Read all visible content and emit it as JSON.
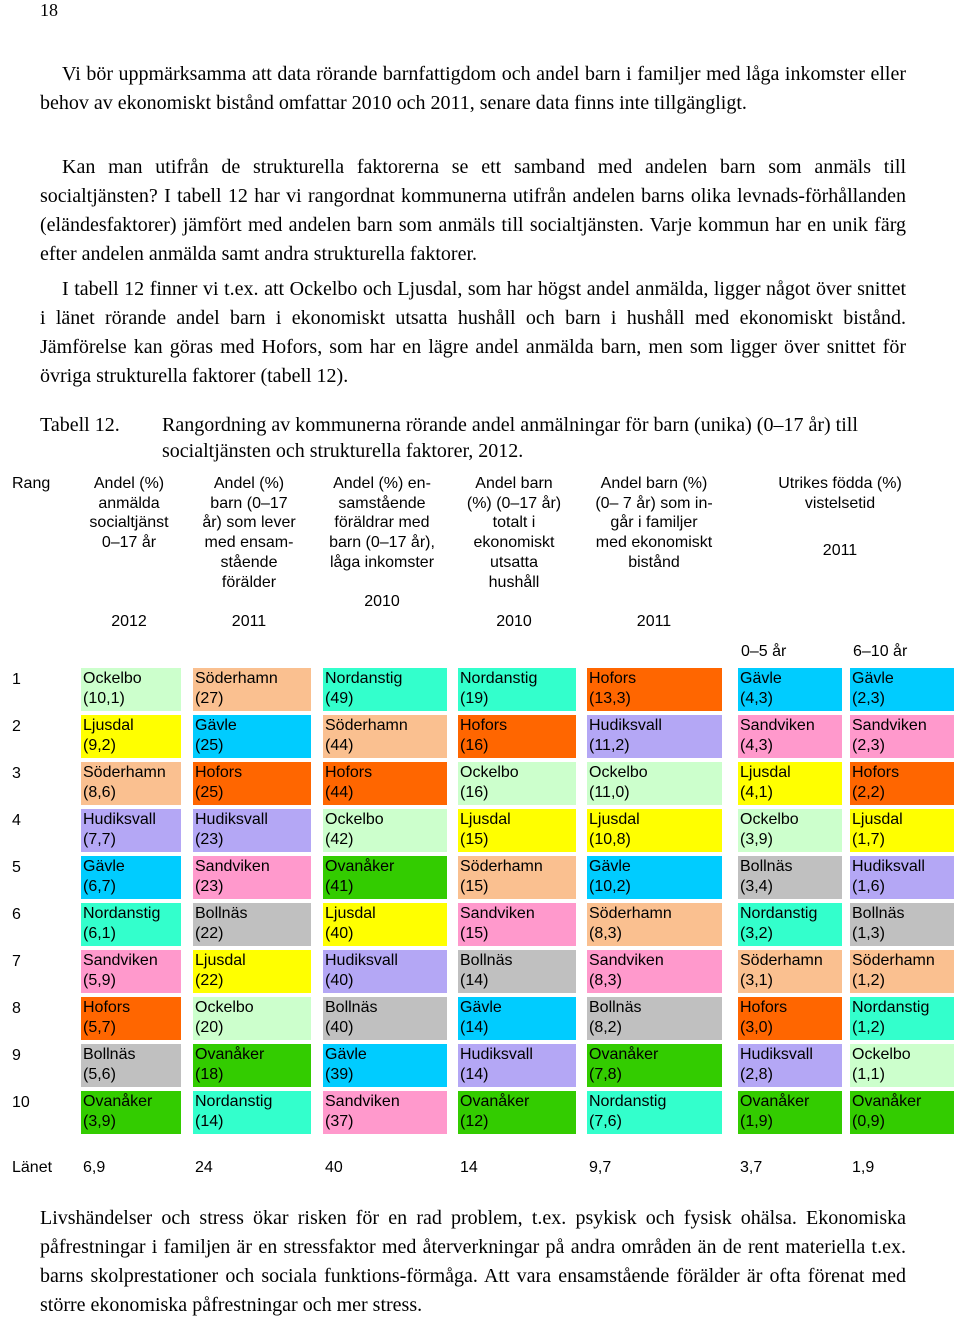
{
  "page_number": "18",
  "paragraphs": [
    {
      "indent": true,
      "text": "Vi bör uppmärksamma att data rörande barnfattigdom och andel barn i familjer med låga inkomster eller behov av ekonomiskt bistånd omfattar 2010 och 2011, senare data finns inte tillgängligt."
    },
    {
      "indent": true,
      "text": "Kan man utifrån de strukturella faktorerna se ett samband med andelen barn som anmäls till socialtjänsten? I tabell 12 har vi rangordnat kommunerna utifrån andelen barns olika levnads-förhållanden (eländesfaktorer) jämfört med andelen barn som anmäls till socialtjänsten. Varje kommun har en unik färg efter andelen anmälda samt andra strukturella faktorer."
    },
    {
      "indent": true,
      "text": "I tabell 12 finner vi t.ex. att Ockelbo och Ljusdal, som har högst andel anmälda, ligger något över snittet i länet rörande andel barn i ekonomiskt utsatta hushåll och barn i hushåll med ekonomiskt bistånd. Jämförelse kan göras med Hofors, som har en lägre andel anmälda barn, men som ligger över snittet för övriga strukturella faktorer (tabell 12)."
    }
  ],
  "caption": {
    "label": "Tabell 12.",
    "text": "Rangordning av kommunerna rörande andel anmälningar för barn (unika) (0–17 år) till socialtjänsten och strukturella faktorer, 2012."
  },
  "table": {
    "rank_header": "Rang",
    "col_headers": [
      {
        "label": "Andel (%)\nanmälda\nsocialtjänst\n0–17 år",
        "year": "2012"
      },
      {
        "label": "Andel (%)\nbarn (0–17\når) som lever\nmed ensam-\nstående\nförälder",
        "year": "2011"
      },
      {
        "label": "Andel (%) en-\nsamstående\nföräldrar med\nbarn (0–17 år),\nlåga inkomster\n\n2010",
        "year": ""
      },
      {
        "label": "Andel barn\n(%) (0–17 år)\ntotalt i\nekonomiskt\nutsatta\nhushåll",
        "year": "2010"
      },
      {
        "label": "Andel barn (%)\n(0– 7 år) som in-\ngår i familjer\nmed ekonomiskt\nbistånd",
        "year": "2011"
      }
    ],
    "utrikes_header": "Utrikes födda (%)\nvistelsetid",
    "utrikes_year": "2011",
    "utrikes_sub": [
      "0–5 år",
      "6–10 år"
    ],
    "ranks": [
      "1",
      "2",
      "3",
      "4",
      "5",
      "6",
      "7",
      "8",
      "9",
      "10"
    ],
    "colors": {
      "Ockelbo": "#ccffcc",
      "Ljusdal": "#ffff00",
      "Söderhamn": "#fac090",
      "Hudiksvall": "#b4a7f5",
      "Gävle": "#00ccff",
      "Nordanstig": "#33ffcc",
      "Sandviken": "#ff99cc",
      "Hofors": "#ff6600",
      "Bollnäs": "#c0c0c0",
      "Ovanåker": "#33cc00"
    },
    "columns": [
      [
        [
          "Ockelbo",
          "(10,1)"
        ],
        [
          "Ljusdal",
          "(9,2)"
        ],
        [
          "Söderhamn",
          "(8,6)"
        ],
        [
          "Hudiksvall",
          "(7,7)"
        ],
        [
          "Gävle",
          "(6,7)"
        ],
        [
          "Nordanstig",
          "(6,1)"
        ],
        [
          "Sandviken",
          "(5,9)"
        ],
        [
          "Hofors",
          "(5,7)"
        ],
        [
          "Bollnäs",
          "(5,6)"
        ],
        [
          "Ovanåker",
          "(3,9)"
        ]
      ],
      [
        [
          "Söderhamn",
          "(27)"
        ],
        [
          "Gävle",
          "(25)"
        ],
        [
          "Hofors",
          "(25)"
        ],
        [
          "Hudiksvall",
          "(23)"
        ],
        [
          "Sandviken",
          "(23)"
        ],
        [
          "Bollnäs",
          "(22)"
        ],
        [
          "Ljusdal",
          "(22)"
        ],
        [
          "Ockelbo",
          "(20)"
        ],
        [
          "Ovanåker",
          "(18)"
        ],
        [
          "Nordanstig",
          "(14)"
        ]
      ],
      [
        [
          "Nordanstig",
          "(49)"
        ],
        [
          "Söderhamn",
          "(44)"
        ],
        [
          "Hofors",
          "(44)"
        ],
        [
          "Ockelbo",
          "(42)"
        ],
        [
          "Ovanåker",
          "(41)"
        ],
        [
          "Ljusdal",
          "(40)"
        ],
        [
          "Hudiksvall",
          "(40)"
        ],
        [
          "Bollnäs",
          "(40)"
        ],
        [
          "Gävle",
          "(39)"
        ],
        [
          "Sandviken",
          "(37)"
        ]
      ],
      [
        [
          "Nordanstig",
          "(19)"
        ],
        [
          "Hofors",
          "(16)"
        ],
        [
          "Ockelbo",
          "(16)"
        ],
        [
          "Ljusdal",
          "(15)"
        ],
        [
          "Söderhamn",
          "(15)"
        ],
        [
          "Sandviken",
          "(15)"
        ],
        [
          "Bollnäs",
          "(14)"
        ],
        [
          "Gävle",
          "(14)"
        ],
        [
          "Hudiksvall",
          "(14)"
        ],
        [
          "Ovanåker",
          "(12)"
        ]
      ],
      [
        [
          "Hofors",
          "(13,3)"
        ],
        [
          "Hudiksvall",
          "(11,2)"
        ],
        [
          "Ockelbo",
          "(11,0)"
        ],
        [
          "Ljusdal",
          "(10,8)"
        ],
        [
          "Gävle",
          "(10,2)"
        ],
        [
          "Söderhamn",
          "(8,3)"
        ],
        [
          "Sandviken",
          "(8,3)"
        ],
        [
          "Bollnäs",
          "(8,2)"
        ],
        [
          "Ovanåker",
          "(7,8)"
        ],
        [
          "Nordanstig",
          "(7,6)"
        ]
      ],
      [
        [
          "Gävle",
          "(4,3)"
        ],
        [
          "Sandviken",
          "(4,3)"
        ],
        [
          "Ljusdal",
          "(4,1)"
        ],
        [
          "Ockelbo",
          "(3,9)"
        ],
        [
          "Bollnäs",
          "(3,4)"
        ],
        [
          "Nordanstig",
          "(3,2)"
        ],
        [
          "Söderhamn",
          "(3,1)"
        ],
        [
          "Hofors",
          "(3,0)"
        ],
        [
          "Hudiksvall",
          "(2,8)"
        ],
        [
          "Ovanåker",
          "(1,9)"
        ]
      ],
      [
        [
          "Gävle",
          "(2,3)"
        ],
        [
          "Sandviken",
          "(2,3)"
        ],
        [
          "Hofors",
          "(2,2)"
        ],
        [
          "Ljusdal",
          "(1,7)"
        ],
        [
          "Hudiksvall",
          "(1,6)"
        ],
        [
          "Bollnäs",
          "(1,3)"
        ],
        [
          "Söderhamn",
          "(1,2)"
        ],
        [
          "Nordanstig",
          "(1,2)"
        ],
        [
          "Ockelbo",
          "(1,1)"
        ],
        [
          "Ovanåker",
          "(0,9)"
        ]
      ]
    ],
    "lanet_label": "Länet",
    "lanet_values": [
      "6,9",
      "24",
      "40",
      "14",
      "9,7",
      "3,7",
      "1,9"
    ]
  },
  "closing_paragraph": "Livshändelser och stress ökar risken för en rad problem, t.ex. psykisk och fysisk ohälsa. Ekonomiska påfrestningar i familjen är en stressfaktor med återverkningar på andra områden än de rent materiella t.ex. barns skolprestationer och sociala funktions-förmåga. Att vara ensamstående förälder är ofta förenat med större ekonomiska påfrestningar och mer stress."
}
